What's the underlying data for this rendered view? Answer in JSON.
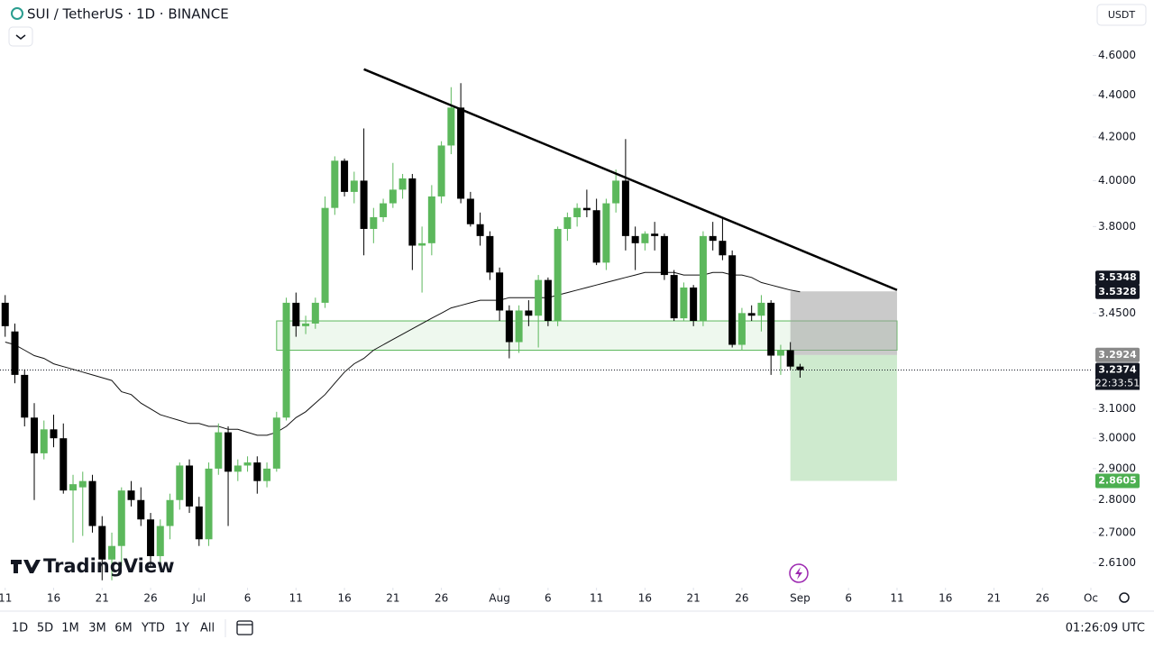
{
  "header": {
    "title": "SUI / TetherUS · 1D · BINANCE",
    "currency": "USDT"
  },
  "toolbar": {
    "ranges": [
      "1D",
      "5D",
      "1M",
      "3M",
      "6M",
      "YTD",
      "1Y",
      "All"
    ],
    "clock": "01:26:09 UTC"
  },
  "watermark": "TradingView",
  "chart_data": {
    "type": "candlestick",
    "log_scale": true,
    "up_color": "#5cb85c",
    "down_color": "#000000",
    "x": [
      "06-11",
      "06-12",
      "06-13",
      "06-14",
      "06-15",
      "06-16",
      "06-17",
      "06-18",
      "06-19",
      "06-20",
      "06-21",
      "06-22",
      "06-23",
      "06-24",
      "06-25",
      "06-26",
      "06-27",
      "06-28",
      "06-29",
      "06-30",
      "07-01",
      "07-02",
      "07-03",
      "07-04",
      "07-05",
      "07-06",
      "07-07",
      "07-08",
      "07-09",
      "07-10",
      "07-11",
      "07-12",
      "07-13",
      "07-14",
      "07-15",
      "07-16",
      "07-17",
      "07-18",
      "07-19",
      "07-20",
      "07-21",
      "07-22",
      "07-23",
      "07-24",
      "07-25",
      "07-26",
      "07-27",
      "07-28",
      "07-29",
      "07-30",
      "07-31",
      "08-01",
      "08-02",
      "08-03",
      "08-04",
      "08-05",
      "08-06",
      "08-07",
      "08-08",
      "08-09",
      "08-10",
      "08-11",
      "08-12",
      "08-13",
      "08-14",
      "08-15",
      "08-16",
      "08-17",
      "08-18",
      "08-19",
      "08-20",
      "08-21",
      "08-22",
      "08-23",
      "08-24",
      "08-25",
      "08-26",
      "08-27",
      "08-28",
      "08-29",
      "08-30",
      "08-31",
      "09-01"
    ],
    "open": [
      3.49,
      3.38,
      3.22,
      3.07,
      2.95,
      3.03,
      3.0,
      2.83,
      2.84,
      2.86,
      2.72,
      2.62,
      2.66,
      2.83,
      2.8,
      2.74,
      2.63,
      2.72,
      2.8,
      2.91,
      2.78,
      2.68,
      2.9,
      3.02,
      2.89,
      2.91,
      2.92,
      2.86,
      2.9,
      3.07,
      3.49,
      3.4,
      3.41,
      3.49,
      3.88,
      4.09,
      3.95,
      4.0,
      3.79,
      3.84,
      3.9,
      3.96,
      4.01,
      3.72,
      3.73,
      3.93,
      4.16,
      4.34,
      3.92,
      3.81,
      3.76,
      3.61,
      3.46,
      3.34,
      3.46,
      3.44,
      3.58,
      3.42,
      3.79,
      3.84,
      3.88,
      3.87,
      3.65,
      3.9,
      4.0,
      3.76,
      3.73,
      3.77,
      3.76,
      3.6,
      3.43,
      3.55,
      3.42,
      3.76,
      3.74,
      3.68,
      3.33,
      3.45,
      3.44,
      3.49,
      3.29,
      3.31,
      3.25
    ],
    "high": [
      3.52,
      3.41,
      3.24,
      3.12,
      3.06,
      3.08,
      3.05,
      2.88,
      2.89,
      2.88,
      2.75,
      2.7,
      2.84,
      2.86,
      2.84,
      2.76,
      2.74,
      2.82,
      2.92,
      2.93,
      2.81,
      2.92,
      3.05,
      3.04,
      2.93,
      2.94,
      2.94,
      2.92,
      3.09,
      3.51,
      3.53,
      3.44,
      3.51,
      3.93,
      4.11,
      4.1,
      4.04,
      4.24,
      3.88,
      3.92,
      4.08,
      4.03,
      4.03,
      3.8,
      3.98,
      4.18,
      4.44,
      4.46,
      3.95,
      3.86,
      3.78,
      3.63,
      3.48,
      3.48,
      3.5,
      3.6,
      3.59,
      3.8,
      3.86,
      3.9,
      3.96,
      3.92,
      3.92,
      4.05,
      4.19,
      3.8,
      3.78,
      3.82,
      3.77,
      3.62,
      3.57,
      3.56,
      3.78,
      3.82,
      3.84,
      3.7,
      3.47,
      3.48,
      3.52,
      3.5,
      3.33,
      3.34,
      3.26
    ],
    "low": [
      3.36,
      3.19,
      3.04,
      2.8,
      2.93,
      2.97,
      2.82,
      2.67,
      2.69,
      2.7,
      2.56,
      2.56,
      2.6,
      2.78,
      2.72,
      2.6,
      2.6,
      2.68,
      2.77,
      2.76,
      2.66,
      2.66,
      2.88,
      2.72,
      2.86,
      2.89,
      2.82,
      2.84,
      2.89,
      3.06,
      3.36,
      3.37,
      3.39,
      3.47,
      3.85,
      3.93,
      3.9,
      3.68,
      3.73,
      3.82,
      3.88,
      3.92,
      3.62,
      3.53,
      3.68,
      3.9,
      4.12,
      3.9,
      3.8,
      3.72,
      3.58,
      3.42,
      3.28,
      3.3,
      3.4,
      3.32,
      3.4,
      3.4,
      3.74,
      3.8,
      3.84,
      3.64,
      3.62,
      3.86,
      3.7,
      3.62,
      3.7,
      3.7,
      3.58,
      3.42,
      3.42,
      3.4,
      3.4,
      3.7,
      3.66,
      3.32,
      3.31,
      3.42,
      3.38,
      3.22,
      3.22,
      3.24,
      3.21
    ],
    "close": [
      3.4,
      3.22,
      3.07,
      2.95,
      3.03,
      3.0,
      2.83,
      2.85,
      2.86,
      2.72,
      2.62,
      2.66,
      2.83,
      2.8,
      2.74,
      2.63,
      2.72,
      2.8,
      2.91,
      2.78,
      2.68,
      2.9,
      3.02,
      2.89,
      2.91,
      2.92,
      2.86,
      2.9,
      3.07,
      3.49,
      3.4,
      3.41,
      3.49,
      3.88,
      4.09,
      3.95,
      4.0,
      3.79,
      3.84,
      3.9,
      3.96,
      4.01,
      3.72,
      3.73,
      3.93,
      4.16,
      4.34,
      3.92,
      3.81,
      3.76,
      3.61,
      3.46,
      3.34,
      3.46,
      3.44,
      3.58,
      3.42,
      3.79,
      3.84,
      3.88,
      3.87,
      3.65,
      3.9,
      4.0,
      3.76,
      3.73,
      3.77,
      3.76,
      3.6,
      3.43,
      3.55,
      3.42,
      3.76,
      3.74,
      3.68,
      3.33,
      3.45,
      3.44,
      3.49,
      3.29,
      3.31,
      3.25,
      3.2374
    ],
    "ma": {
      "color": "#111111",
      "values": [
        3.34,
        3.33,
        3.31,
        3.29,
        3.28,
        3.26,
        3.25,
        3.24,
        3.23,
        3.22,
        3.21,
        3.2,
        3.16,
        3.15,
        3.12,
        3.1,
        3.08,
        3.07,
        3.06,
        3.05,
        3.05,
        3.04,
        3.04,
        3.03,
        3.03,
        3.02,
        3.01,
        3.01,
        3.02,
        3.04,
        3.07,
        3.09,
        3.12,
        3.15,
        3.19,
        3.23,
        3.26,
        3.28,
        3.31,
        3.33,
        3.35,
        3.37,
        3.39,
        3.41,
        3.43,
        3.45,
        3.47,
        3.48,
        3.49,
        3.5,
        3.5,
        3.5,
        3.51,
        3.51,
        3.51,
        3.51,
        3.51,
        3.52,
        3.53,
        3.54,
        3.55,
        3.56,
        3.57,
        3.58,
        3.59,
        3.6,
        3.61,
        3.61,
        3.61,
        3.61,
        3.6,
        3.6,
        3.6,
        3.61,
        3.61,
        3.6,
        3.6,
        3.59,
        3.57,
        3.56,
        3.55,
        3.54,
        3.5328
      ]
    },
    "trendline": {
      "color": "#000000",
      "x": [
        "07-18",
        "09-11"
      ],
      "values": [
        4.53,
        3.54
      ]
    },
    "zone": {
      "color": "#5cb85c",
      "x": [
        "07-09",
        "09-11"
      ],
      "values": [
        3.42,
        3.31
      ]
    },
    "position": {
      "x": [
        "08-31",
        "09-11"
      ],
      "stop": 3.5348,
      "entry": 3.2924,
      "target": 2.8605
    },
    "countdown": "22:33:51",
    "xlim": [
      "06-10",
      "10-01"
    ],
    "xticks": [
      {
        "value": "06-11",
        "label": "11"
      },
      {
        "value": "06-16",
        "label": "16"
      },
      {
        "value": "06-21",
        "label": "21"
      },
      {
        "value": "06-26",
        "label": "26"
      },
      {
        "value": "07-01",
        "label": "Jul"
      },
      {
        "value": "07-06",
        "label": "6"
      },
      {
        "value": "07-11",
        "label": "11"
      },
      {
        "value": "07-16",
        "label": "16"
      },
      {
        "value": "07-21",
        "label": "21"
      },
      {
        "value": "07-26",
        "label": "26"
      },
      {
        "value": "08-01",
        "label": "Aug"
      },
      {
        "value": "08-06",
        "label": "6"
      },
      {
        "value": "08-11",
        "label": "11"
      },
      {
        "value": "08-16",
        "label": "16"
      },
      {
        "value": "08-21",
        "label": "21"
      },
      {
        "value": "08-26",
        "label": "26"
      },
      {
        "value": "09-01",
        "label": "Sep"
      },
      {
        "value": "09-06",
        "label": "6"
      },
      {
        "value": "09-11",
        "label": "11"
      },
      {
        "value": "09-16",
        "label": "16"
      },
      {
        "value": "09-21",
        "label": "21"
      },
      {
        "value": "09-26",
        "label": "26"
      },
      {
        "value": "10-01",
        "label": "Oc"
      }
    ],
    "ylim": [
      2.544,
      4.894
    ],
    "yticks": [
      {
        "value": 4.6,
        "label": "4.6000"
      },
      {
        "value": 4.4,
        "label": "4.4000"
      },
      {
        "value": 4.2,
        "label": "4.2000"
      },
      {
        "value": 4.0,
        "label": "4.0000"
      },
      {
        "value": 3.8,
        "label": "3.8000"
      },
      {
        "value": 3.45,
        "label": "3.4500"
      },
      {
        "value": 3.1,
        "label": "3.1000"
      },
      {
        "value": 3.0,
        "label": "3.0000"
      },
      {
        "value": 2.9,
        "label": "2.9000"
      },
      {
        "value": 2.8,
        "label": "2.8000"
      },
      {
        "value": 2.7,
        "label": "2.7000"
      },
      {
        "value": 2.61,
        "label": "2.6100"
      }
    ]
  }
}
